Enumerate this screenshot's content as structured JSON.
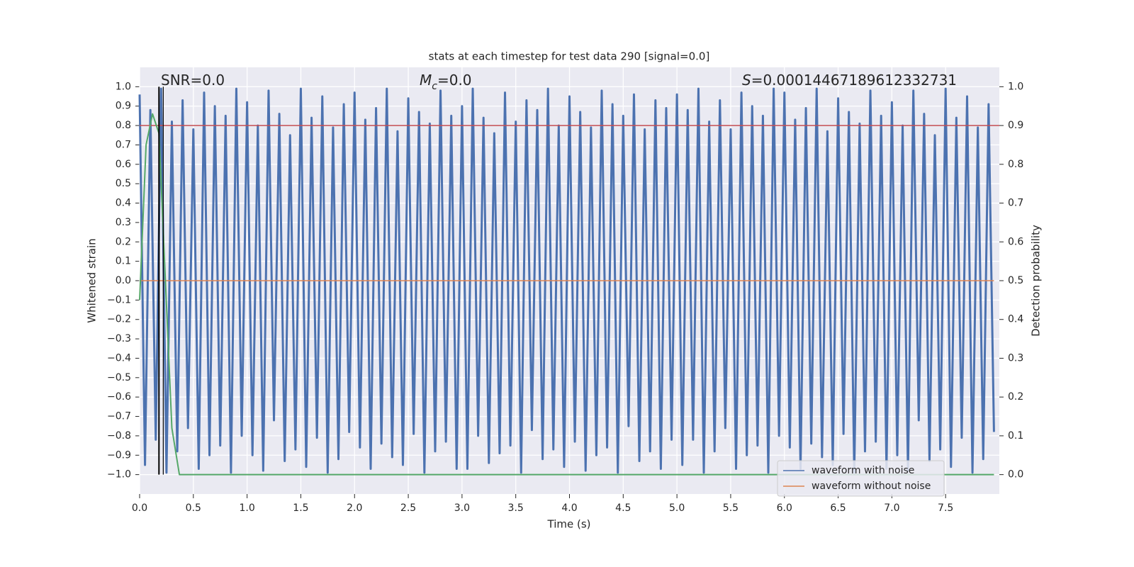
{
  "chart_data": {
    "type": "line",
    "title": "stats at each timestep for test data 290 [signal=0.0]",
    "xlabel": "Time (s)",
    "ylabel": "Whitened strain",
    "y2label": "Detection probability",
    "xlim": [
      0,
      8
    ],
    "ylim": [
      -1.1,
      1.1
    ],
    "y2lim": [
      -0.05,
      1.05
    ],
    "grid": true,
    "legend": "lower right",
    "xticks": [
      {
        "value": 0,
        "label": "0.0"
      },
      {
        "value": 0.5,
        "label": "0.5"
      },
      {
        "value": 1,
        "label": "1.0"
      },
      {
        "value": 1.5,
        "label": "1.5"
      },
      {
        "value": 2,
        "label": "2.0"
      },
      {
        "value": 2.5,
        "label": "2.5"
      },
      {
        "value": 3,
        "label": "3.0"
      },
      {
        "value": 3.5,
        "label": "3.5"
      },
      {
        "value": 4,
        "label": "4.0"
      },
      {
        "value": 4.5,
        "label": "4.5"
      },
      {
        "value": 5,
        "label": "5.0"
      },
      {
        "value": 5.5,
        "label": "5.5"
      },
      {
        "value": 6,
        "label": "6.0"
      },
      {
        "value": 6.5,
        "label": "6.5"
      },
      {
        "value": 7,
        "label": "7.0"
      },
      {
        "value": 7.5,
        "label": "7.5"
      }
    ],
    "yticks": [
      {
        "value": -1,
        "label": "−1.0"
      },
      {
        "value": -0.9,
        "label": "−0.9"
      },
      {
        "value": -0.8,
        "label": "−0.8"
      },
      {
        "value": -0.7,
        "label": "−0.7"
      },
      {
        "value": -0.6,
        "label": "−0.6"
      },
      {
        "value": -0.5,
        "label": "−0.5"
      },
      {
        "value": -0.4,
        "label": "−0.4"
      },
      {
        "value": -0.3,
        "label": "−0.3"
      },
      {
        "value": -0.2,
        "label": "−0.2"
      },
      {
        "value": -0.1,
        "label": "−0.1"
      },
      {
        "value": 0,
        "label": "0.0"
      },
      {
        "value": 0.1,
        "label": "0.1"
      },
      {
        "value": 0.2,
        "label": "0.2"
      },
      {
        "value": 0.3,
        "label": "0.3"
      },
      {
        "value": 0.4,
        "label": "0.4"
      },
      {
        "value": 0.5,
        "label": "0.5"
      },
      {
        "value": 0.6,
        "label": "0.6"
      },
      {
        "value": 0.7,
        "label": "0.7"
      },
      {
        "value": 0.8,
        "label": "0.8"
      },
      {
        "value": 0.9,
        "label": "0.9"
      },
      {
        "value": 1,
        "label": "1.0"
      }
    ],
    "y2ticks": [
      {
        "value": 0,
        "label": "0.0"
      },
      {
        "value": 0.1,
        "label": "0.1"
      },
      {
        "value": 0.2,
        "label": "0.2"
      },
      {
        "value": 0.3,
        "label": "0.3"
      },
      {
        "value": 0.4,
        "label": "0.4"
      },
      {
        "value": 0.5,
        "label": "0.5"
      },
      {
        "value": 0.6,
        "label": "0.6"
      },
      {
        "value": 0.7,
        "label": "0.7"
      },
      {
        "value": 0.8,
        "label": "0.8"
      },
      {
        "value": 0.9,
        "label": "0.9"
      },
      {
        "value": 1,
        "label": "1.0"
      }
    ],
    "series": [
      {
        "name": "waveform with noise",
        "color": "#4c72b0",
        "width": 3,
        "x": [
          0,
          0.05,
          0.1,
          0.15,
          0.2,
          0.25,
          0.3,
          0.35,
          0.4,
          0.45,
          0.5,
          0.55,
          0.6,
          0.65,
          0.7,
          0.75,
          0.8,
          0.85,
          0.9,
          0.95,
          1,
          1.05,
          1.1,
          1.15,
          1.2,
          1.25,
          1.3,
          1.35,
          1.4,
          1.45,
          1.5,
          1.55,
          1.6,
          1.65,
          1.7,
          1.75,
          1.8,
          1.85,
          1.9,
          1.95,
          2,
          2.05,
          2.1,
          2.15,
          2.2,
          2.25,
          2.3,
          2.35,
          2.4,
          2.45,
          2.5,
          2.55,
          2.6,
          2.65,
          2.7,
          2.75,
          2.8,
          2.85,
          2.9,
          2.95,
          3,
          3.05,
          3.1,
          3.15,
          3.2,
          3.25,
          3.3,
          3.35,
          3.4,
          3.45,
          3.5,
          3.55,
          3.6,
          3.65,
          3.7,
          3.75,
          3.8,
          3.85,
          3.9,
          3.95,
          4,
          4.05,
          4.1,
          4.15,
          4.2,
          4.25,
          4.3,
          4.35,
          4.4,
          4.45,
          4.5,
          4.55,
          4.6,
          4.65,
          4.7,
          4.75,
          4.8,
          4.85,
          4.9,
          4.95,
          5,
          5.05,
          5.1,
          5.15,
          5.2,
          5.25,
          5.3,
          5.35,
          5.4,
          5.45,
          5.5,
          5.55,
          5.6,
          5.65,
          5.7,
          5.75,
          5.8,
          5.85,
          5.9,
          5.95,
          6,
          6.05,
          6.1,
          6.15,
          6.2,
          6.25,
          6.3,
          6.35,
          6.4,
          6.45,
          6.5,
          6.55,
          6.6,
          6.65,
          6.7,
          6.75,
          6.8,
          6.85,
          6.9,
          6.95,
          7,
          7.05,
          7.1,
          7.15,
          7.2,
          7.25,
          7.3,
          7.35,
          7.4,
          7.45,
          7.5,
          7.55,
          7.6,
          7.65,
          7.7,
          7.75,
          7.8,
          7.85,
          7.9,
          7.95
        ],
        "values": [
          0.96,
          -0.95,
          0.88,
          -0.82,
          0.99,
          -0.99,
          0.82,
          -0.88,
          0.93,
          -0.76,
          0.78,
          -0.97,
          0.97,
          -0.9,
          0.9,
          -0.85,
          0.85,
          -0.99,
          0.99,
          -0.8,
          0.92,
          -0.9,
          0.8,
          -0.98,
          0.98,
          -0.72,
          0.86,
          -0.93,
          0.75,
          -0.87,
          0.99,
          -0.96,
          0.84,
          -0.81,
          0.95,
          -0.99,
          0.79,
          -0.92,
          0.91,
          -0.78,
          0.97,
          -0.86,
          0.83,
          -0.97,
          0.89,
          -0.84,
          0.99,
          -0.91,
          0.77,
          -0.95,
          0.94,
          -0.79,
          0.87,
          -0.99,
          0.81,
          -0.88,
          0.98,
          -0.83,
          0.85,
          -0.97,
          0.9,
          -0.97,
          0.99,
          -0.8,
          0.84,
          -0.94,
          0.76,
          -0.89,
          0.97,
          -0.85,
          0.82,
          -0.99,
          0.93,
          -0.77,
          0.88,
          -0.92,
          0.99,
          -0.87,
          0.8,
          -0.96,
          0.95,
          -0.83,
          0.87,
          -0.98,
          0.79,
          -0.9,
          0.98,
          -0.86,
          0.91,
          -0.99,
          0.85,
          -0.75,
          0.96,
          -0.93,
          0.78,
          -0.88,
          0.93,
          -0.97,
          0.89,
          -0.82,
          0.96,
          -0.95,
          0.88,
          -0.82,
          0.99,
          -0.99,
          0.82,
          -0.88,
          0.93,
          -0.76,
          0.78,
          -0.97,
          0.97,
          -0.9,
          0.9,
          -0.85,
          0.85,
          -0.99,
          0.99,
          -0.8,
          0.97,
          -0.86,
          0.83,
          -0.97,
          0.89,
          -0.84,
          0.99,
          -0.91,
          0.77,
          -0.95,
          0.94,
          -0.79,
          0.87,
          -0.99,
          0.81,
          -0.88,
          0.98,
          -0.83,
          0.85,
          -0.97,
          0.92,
          -0.9,
          0.8,
          -0.98,
          0.98,
          -0.72,
          0.86,
          -0.93,
          0.75,
          -0.87,
          0.99,
          -0.96,
          0.84,
          -0.81,
          0.95,
          -0.99,
          0.79,
          -0.92,
          0.91,
          -0.78
        ]
      },
      {
        "name": "waveform without noise",
        "color": "#dd8452",
        "width": 1.5,
        "x": [
          0,
          7.95
        ],
        "values": [
          0,
          0
        ]
      }
    ],
    "probability": {
      "color": "#55a868",
      "axis": "y2",
      "x": [
        0,
        0.06,
        0.12,
        0.18,
        0.24,
        0.3,
        0.37,
        7.95
      ],
      "values": [
        0.45,
        0.85,
        0.93,
        0.88,
        0.5,
        0.12,
        0,
        0
      ]
    },
    "threshold": {
      "value": 0.9,
      "axis": "y2",
      "color": "#c44e52"
    },
    "vlines": {
      "x": [
        0.18,
        0.22
      ],
      "color": "#000000"
    },
    "annotations": [
      {
        "parts": [
          {
            "text": "SNR=0.0"
          }
        ]
      },
      {
        "parts": [
          {
            "text": "M",
            "style": "italic"
          },
          {
            "text": "c",
            "style": "sub"
          },
          {
            "text": "=0.0"
          }
        ]
      },
      {
        "parts": [
          {
            "text": "S",
            "style": "italic"
          },
          {
            "text": "=0.00014467189612332731"
          }
        ]
      }
    ]
  }
}
